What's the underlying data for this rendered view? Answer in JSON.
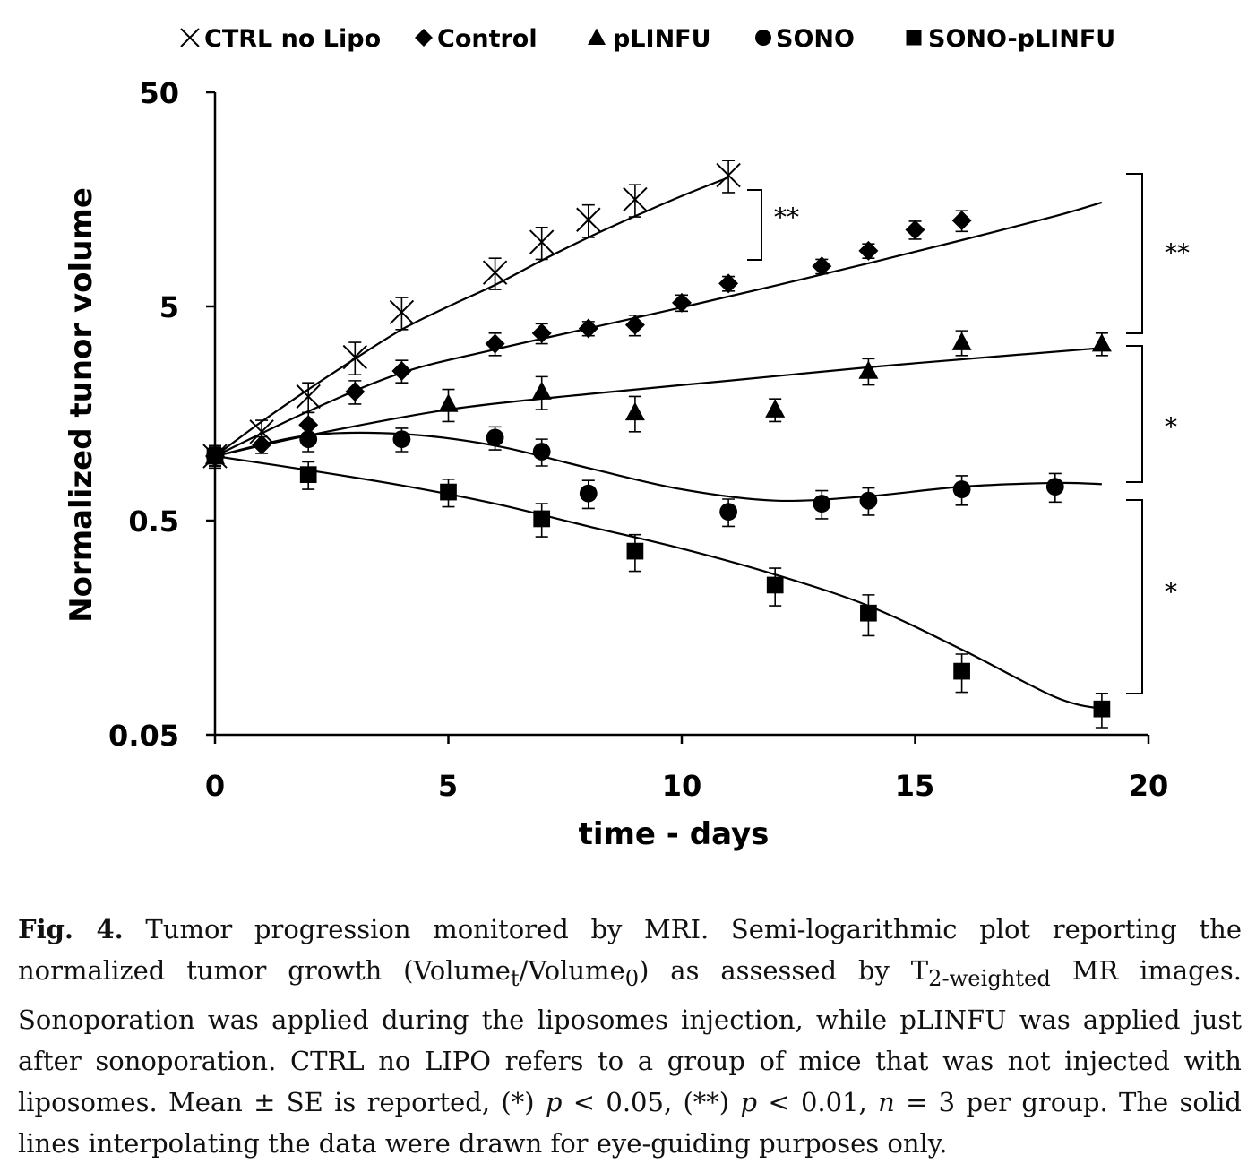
{
  "chart_data": {
    "type": "scatter",
    "xlabel": "time - days",
    "ylabel": "Normalized tunor volume",
    "xlim": [
      0,
      20
    ],
    "ylim": [
      0.05,
      50
    ],
    "yscale": "log",
    "xticks": [
      "0",
      "5",
      "10",
      "15",
      "20"
    ],
    "yticks": [
      "0.05",
      "0.5",
      "5",
      "50"
    ],
    "grid": false,
    "legend_position": "top",
    "series": [
      {
        "name": "CTRL no Lipo",
        "marker": "x",
        "x": [
          0,
          1,
          2,
          3,
          4,
          6,
          7,
          8,
          9,
          11
        ],
        "y": [
          1.0,
          1.3,
          1.9,
          2.9,
          4.7,
          7.2,
          10.0,
          12.7,
          15.8,
          20.5
        ],
        "err": [
          0.12,
          0.17,
          0.3,
          0.5,
          0.8,
          1.2,
          1.7,
          2.2,
          2.7,
          3.5
        ],
        "fit": [
          [
            0,
            1.0
          ],
          [
            1,
            1.45
          ],
          [
            2,
            2.05
          ],
          [
            3,
            2.85
          ],
          [
            4,
            3.9
          ],
          [
            5,
            5.0
          ],
          [
            6,
            6.3
          ],
          [
            7,
            8.2
          ],
          [
            8,
            10.5
          ],
          [
            9,
            13.2
          ],
          [
            10,
            16.4
          ],
          [
            11,
            20.0
          ]
        ]
      },
      {
        "name": "Control",
        "marker": "diamond",
        "x": [
          0,
          1,
          2,
          3,
          4,
          6,
          7,
          8,
          9,
          10,
          11,
          13,
          14,
          15,
          16
        ],
        "y": [
          1.0,
          1.13,
          1.4,
          2.0,
          2.5,
          3.35,
          3.75,
          3.95,
          4.1,
          5.2,
          6.4,
          7.7,
          9.1,
          11.4,
          12.6
        ],
        "err": [
          0.1,
          0.1,
          0.2,
          0.25,
          0.3,
          0.4,
          0.4,
          0.3,
          0.45,
          0.45,
          0.5,
          0.6,
          0.7,
          1.1,
          1.4
        ],
        "fit": [
          [
            0,
            1.0
          ],
          [
            2,
            1.62
          ],
          [
            4,
            2.45
          ],
          [
            6,
            3.15
          ],
          [
            8,
            3.95
          ],
          [
            10,
            4.95
          ],
          [
            12,
            6.25
          ],
          [
            14,
            7.95
          ],
          [
            16,
            10.2
          ],
          [
            18,
            13.2
          ],
          [
            19,
            15.3
          ]
        ]
      },
      {
        "name": "pLINFU",
        "marker": "triangle",
        "x": [
          0,
          5,
          7,
          9,
          12,
          14,
          16,
          19
        ],
        "y": [
          1.0,
          1.75,
          2.0,
          1.6,
          1.65,
          2.5,
          3.4,
          3.35
        ],
        "err": [
          0.1,
          0.3,
          0.35,
          0.3,
          0.2,
          0.35,
          0.45,
          0.4
        ],
        "fit": [
          [
            0,
            1.0
          ],
          [
            2,
            1.25
          ],
          [
            5,
            1.65
          ],
          [
            8,
            1.95
          ],
          [
            11,
            2.25
          ],
          [
            14,
            2.6
          ],
          [
            17,
            2.95
          ],
          [
            19,
            3.2
          ]
        ]
      },
      {
        "name": "SONO",
        "marker": "circle",
        "x": [
          0,
          2,
          4,
          6,
          7,
          8,
          11,
          13,
          14,
          16,
          18
        ],
        "y": [
          1.0,
          1.2,
          1.2,
          1.22,
          1.05,
          0.67,
          0.55,
          0.6,
          0.62,
          0.7,
          0.72
        ],
        "err": [
          0.1,
          0.15,
          0.15,
          0.15,
          0.15,
          0.1,
          0.08,
          0.09,
          0.09,
          0.11,
          0.11
        ],
        "fit": [
          [
            0,
            1.0
          ],
          [
            2,
            1.25
          ],
          [
            4,
            1.27
          ],
          [
            6,
            1.12
          ],
          [
            8,
            0.88
          ],
          [
            10,
            0.7
          ],
          [
            12,
            0.62
          ],
          [
            14,
            0.65
          ],
          [
            16,
            0.72
          ],
          [
            18,
            0.75
          ],
          [
            19,
            0.74
          ]
        ]
      },
      {
        "name": "SONO-pLINFU",
        "marker": "square",
        "x": [
          0,
          2,
          5,
          7,
          9,
          12,
          14,
          16,
          19
        ],
        "y": [
          1.0,
          0.82,
          0.68,
          0.51,
          0.36,
          0.25,
          0.185,
          0.099,
          0.066
        ],
        "err": [
          0.1,
          0.12,
          0.1,
          0.09,
          0.07,
          0.05,
          0.04,
          0.02,
          0.012
        ],
        "fit": [
          [
            0,
            1.0
          ],
          [
            2,
            0.86
          ],
          [
            4,
            0.73
          ],
          [
            6,
            0.6
          ],
          [
            8,
            0.47
          ],
          [
            10,
            0.37
          ],
          [
            12,
            0.28
          ],
          [
            14,
            0.2
          ],
          [
            16,
            0.125
          ],
          [
            18,
            0.075
          ],
          [
            19,
            0.066
          ]
        ]
      }
    ],
    "annotations": [
      {
        "label": "**",
        "spans": "CTRL no Lipo vs Control"
      },
      {
        "label": "**",
        "spans": "Control vs pLINFU"
      },
      {
        "label": "*",
        "spans": "pLINFU vs SONO"
      },
      {
        "label": "*",
        "spans": "SONO vs SONO-pLINFU"
      }
    ]
  },
  "caption": {
    "fig_label": "Fig. 4.",
    "text_1": " Tumor progression monitored by MRI. Semi-logarithmic plot reporting the normalized tumor growth (Volume",
    "sub_t": "t",
    "text_2": "/Volume",
    "sub_0": "0",
    "text_3": ") as assessed by T",
    "sub_weighted": "2-weighted",
    "text_4": " MR images. Sonoporation was applied during the liposomes injection, while pLINFU was applied just after sonoporation. CTRL no LIPO refers to a group of mice that was not injected with liposomes. Mean ± SE is reported, (*) ",
    "p1": "p",
    "text_5": " < 0.05, (**) ",
    "p2": "p",
    "text_6": " < 0.01, ",
    "n": "n",
    "text_7": " = 3 per group. The solid lines interpolating the data were drawn for eye-guiding purposes only."
  }
}
